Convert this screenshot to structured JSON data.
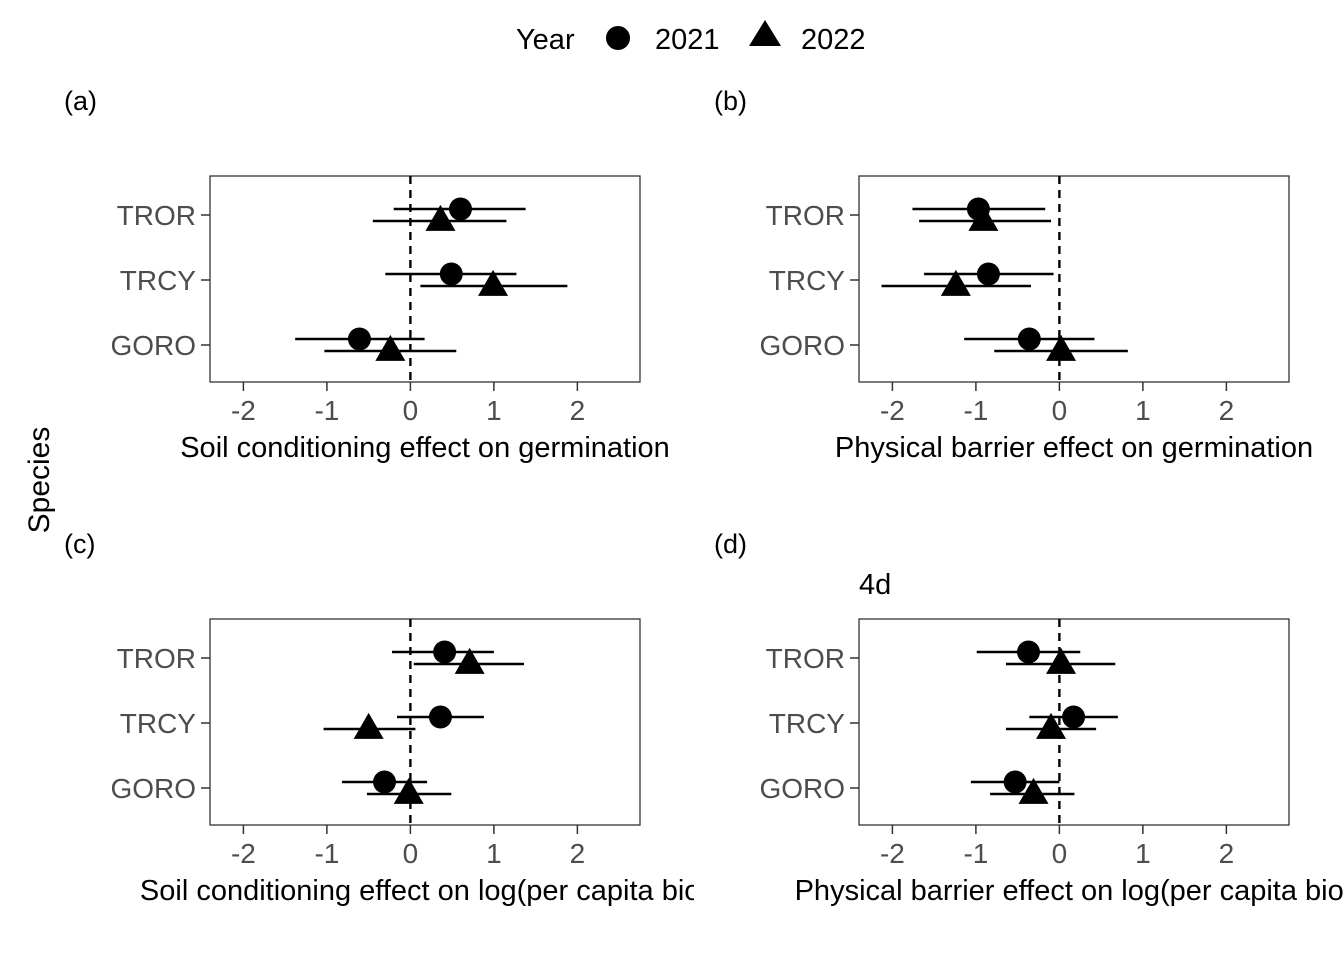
{
  "figure": {
    "y_axis_title": "Species",
    "legend": {
      "title": "Year",
      "entries": [
        {
          "label": "2021",
          "shape": "circle"
        },
        {
          "label": "2022",
          "shape": "triangle"
        }
      ],
      "placement": "top"
    }
  },
  "chart_data": [
    {
      "type": "scatter",
      "panel_tag": "(a)",
      "title": "",
      "xlabel": "Soil conditioning effect on germination",
      "ylabel": "Species",
      "categories": [
        "TROR",
        "TRCY",
        "GORO"
      ],
      "xlim": [
        -2.4,
        2.75
      ],
      "xticks": [
        "-2",
        "-1",
        "0",
        "1",
        "2"
      ],
      "reference_line": 0,
      "grid": false,
      "series": [
        {
          "name": "2021",
          "marker": "circle",
          "points": [
            {
              "species": "TROR",
              "x": 0.6,
              "lo": -0.2,
              "hi": 1.38
            },
            {
              "species": "TRCY",
              "x": 0.49,
              "lo": -0.3,
              "hi": 1.27
            },
            {
              "species": "GORO",
              "x": -0.61,
              "lo": -1.38,
              "hi": 0.17
            }
          ]
        },
        {
          "name": "2022",
          "marker": "triangle",
          "points": [
            {
              "species": "TROR",
              "x": 0.36,
              "lo": -0.45,
              "hi": 1.15
            },
            {
              "species": "TRCY",
              "x": 0.99,
              "lo": 0.12,
              "hi": 1.88
            },
            {
              "species": "GORO",
              "x": -0.24,
              "lo": -1.03,
              "hi": 0.55
            }
          ]
        }
      ]
    },
    {
      "type": "scatter",
      "panel_tag": "(b)",
      "title": "",
      "xlabel": "Physical barrier effect on germination",
      "ylabel": "Species",
      "categories": [
        "TROR",
        "TRCY",
        "GORO"
      ],
      "xlim": [
        -2.4,
        2.75
      ],
      "xticks": [
        "-2",
        "-1",
        "0",
        "1",
        "2"
      ],
      "reference_line": 0,
      "grid": false,
      "series": [
        {
          "name": "2021",
          "marker": "circle",
          "points": [
            {
              "species": "TROR",
              "x": -0.97,
              "lo": -1.76,
              "hi": -0.17
            },
            {
              "species": "TRCY",
              "x": -0.85,
              "lo": -1.62,
              "hi": -0.07
            },
            {
              "species": "GORO",
              "x": -0.36,
              "lo": -1.14,
              "hi": 0.42
            }
          ]
        },
        {
          "name": "2022",
          "marker": "triangle",
          "points": [
            {
              "species": "TROR",
              "x": -0.91,
              "lo": -1.68,
              "hi": -0.1
            },
            {
              "species": "TRCY",
              "x": -1.24,
              "lo": -2.13,
              "hi": -0.34
            },
            {
              "species": "GORO",
              "x": 0.02,
              "lo": -0.78,
              "hi": 0.82
            }
          ]
        }
      ]
    },
    {
      "type": "scatter",
      "panel_tag": "(c)",
      "title": "",
      "xlabel": "Soil conditioning effect on log(per capita bior",
      "ylabel": "Species",
      "categories": [
        "TROR",
        "TRCY",
        "GORO"
      ],
      "xlim": [
        -2.4,
        2.75
      ],
      "xticks": [
        "-2",
        "-1",
        "0",
        "1",
        "2"
      ],
      "reference_line": 0,
      "grid": false,
      "series": [
        {
          "name": "2021",
          "marker": "circle",
          "points": [
            {
              "species": "TROR",
              "x": 0.41,
              "lo": -0.22,
              "hi": 1.0
            },
            {
              "species": "TRCY",
              "x": 0.36,
              "lo": -0.16,
              "hi": 0.88
            },
            {
              "species": "GORO",
              "x": -0.31,
              "lo": -0.82,
              "hi": 0.2
            }
          ]
        },
        {
          "name": "2022",
          "marker": "triangle",
          "points": [
            {
              "species": "TROR",
              "x": 0.71,
              "lo": 0.04,
              "hi": 1.36
            },
            {
              "species": "TRCY",
              "x": -0.5,
              "lo": -1.04,
              "hi": 0.06
            },
            {
              "species": "GORO",
              "x": -0.02,
              "lo": -0.52,
              "hi": 0.49
            }
          ]
        }
      ]
    },
    {
      "type": "scatter",
      "panel_tag": "(d)",
      "title": "4d",
      "xlabel": "Physical barrier effect on log(per capita bior",
      "ylabel": "Species",
      "categories": [
        "TROR",
        "TRCY",
        "GORO"
      ],
      "xlim": [
        -2.4,
        2.75
      ],
      "xticks": [
        "-2",
        "-1",
        "0",
        "1",
        "2"
      ],
      "reference_line": 0,
      "grid": false,
      "series": [
        {
          "name": "2021",
          "marker": "circle",
          "points": [
            {
              "species": "TROR",
              "x": -0.37,
              "lo": -0.99,
              "hi": 0.25
            },
            {
              "species": "TRCY",
              "x": 0.17,
              "lo": -0.36,
              "hi": 0.7
            },
            {
              "species": "GORO",
              "x": -0.53,
              "lo": -1.06,
              "hi": 0.0
            }
          ]
        },
        {
          "name": "2022",
          "marker": "triangle",
          "points": [
            {
              "species": "TROR",
              "x": 0.02,
              "lo": -0.64,
              "hi": 0.67
            },
            {
              "species": "TRCY",
              "x": -0.1,
              "lo": -0.64,
              "hi": 0.44
            },
            {
              "species": "GORO",
              "x": -0.31,
              "lo": -0.83,
              "hi": 0.18
            }
          ]
        }
      ]
    }
  ]
}
